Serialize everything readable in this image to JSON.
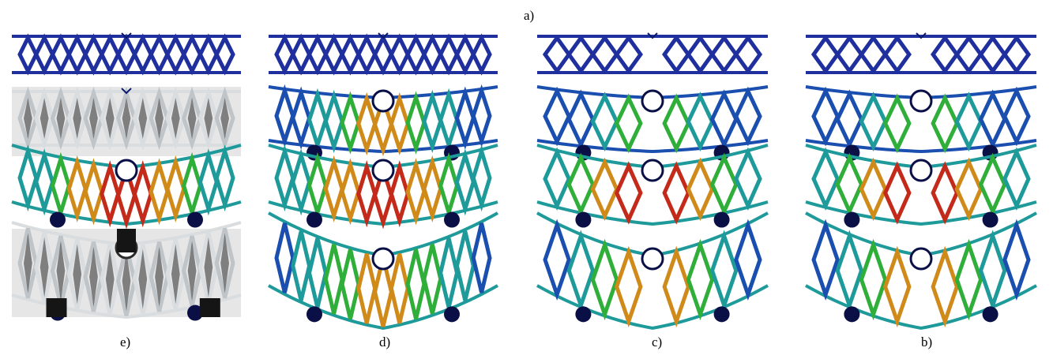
{
  "figure": {
    "top_label": "a)",
    "columns": [
      {
        "id": "e",
        "label": "e)"
      },
      {
        "id": "d",
        "label": "d)"
      },
      {
        "id": "c",
        "label": "c)"
      },
      {
        "id": "b",
        "label": "b)"
      }
    ]
  },
  "colors": {
    "undeformed": "#1f2f9e",
    "undeformed_dark": "#0c1a6e",
    "stress_low": "#1a4fb0",
    "stress_mid_teal": "#1f9a9a",
    "stress_mid_green": "#2fae3a",
    "stress_high_orange": "#d08a1a",
    "stress_max_red": "#c42a1a",
    "support": "#0a1046",
    "metal_light": "#d9dde0",
    "metal_dark": "#2a2a2a",
    "background_photo": "#e6e6e6"
  }
}
